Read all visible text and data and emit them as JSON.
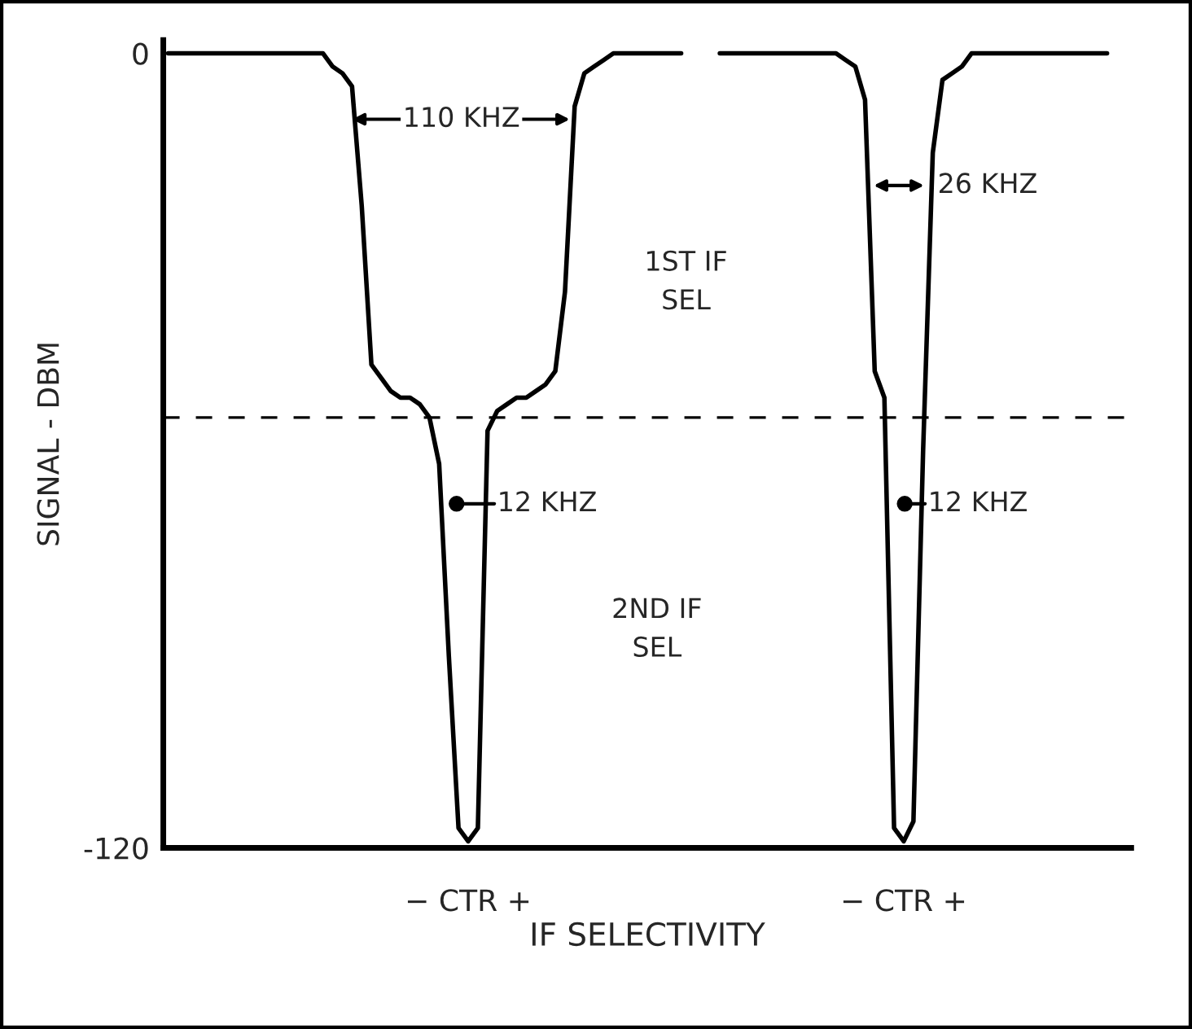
{
  "chart_data": {
    "type": "line",
    "xlabel": "IF SELECTIVITY",
    "ylabel": "SIGNAL - DBM",
    "categories": [
      null,
      null,
      null,
      null,
      null,
      null,
      null,
      null,
      null,
      null,
      null,
      null,
      null,
      null,
      null,
      null,
      null,
      null,
      null,
      null,
      null,
      null,
      null,
      null,
      null,
      null,
      null,
      null,
      null,
      null,
      null,
      "− CTR +",
      null,
      null,
      null,
      null,
      null,
      null,
      null,
      null,
      null,
      null,
      null,
      null,
      null,
      null,
      null,
      null,
      null,
      null,
      null,
      null,
      null,
      null,
      null,
      null,
      null,
      null,
      null,
      null,
      null,
      null,
      null,
      null,
      null,
      null,
      null,
      null,
      null,
      null,
      null,
      null,
      null,
      null,
      null,
      null,
      "− CTR +",
      null,
      null,
      null,
      null,
      null,
      null,
      null,
      null,
      null,
      null,
      null,
      null,
      null,
      null,
      null,
      null,
      null,
      null,
      null,
      null,
      null,
      null,
      null
    ],
    "ylim": [
      -120,
      2
    ],
    "yticks": [
      0,
      -120
    ],
    "series": [
      {
        "color": "#000000",
        "values": [
          0,
          0,
          0,
          0,
          0,
          0,
          0,
          0,
          0,
          0,
          0,
          0,
          0,
          0,
          0,
          0,
          0,
          -2,
          -3,
          -5,
          -23,
          -47,
          -49,
          -51,
          -52,
          -52,
          -53,
          -55,
          -62,
          -91,
          -117,
          -119,
          -117,
          -57,
          -54,
          -53,
          -52,
          -52,
          -51,
          -50,
          -48,
          -36,
          -8,
          -3,
          -2,
          -1,
          0,
          0,
          0,
          0,
          0,
          0,
          0,
          0,
          null,
          null,
          null,
          null,
          null,
          null,
          null,
          null,
          null,
          null,
          null,
          null,
          null,
          null,
          null,
          null,
          null,
          null,
          null,
          null,
          null,
          null,
          null,
          null,
          null,
          null,
          null,
          null,
          null,
          null,
          null,
          null,
          null,
          null,
          null,
          null,
          null,
          null,
          null,
          null,
          null,
          null,
          null,
          null,
          null,
          null
        ]
      },
      {
        "color": "#000000",
        "values": [
          null,
          null,
          null,
          null,
          null,
          null,
          null,
          null,
          null,
          null,
          null,
          null,
          null,
          null,
          null,
          null,
          null,
          null,
          null,
          null,
          null,
          null,
          null,
          null,
          null,
          null,
          null,
          null,
          null,
          null,
          null,
          null,
          null,
          null,
          null,
          null,
          null,
          null,
          null,
          null,
          null,
          null,
          null,
          null,
          null,
          null,
          null,
          null,
          null,
          null,
          null,
          null,
          null,
          null,
          null,
          null,
          null,
          0,
          0,
          0,
          0,
          0,
          0,
          0,
          0,
          0,
          0,
          0,
          0,
          0,
          -1,
          -2,
          -7,
          -48,
          -52,
          -117,
          -119,
          -116,
          -60,
          -15,
          -4,
          -3,
          -2,
          0,
          0,
          0,
          0,
          0,
          0,
          0,
          0,
          0,
          0,
          0,
          0,
          0,
          0,
          0,
          null,
          null
        ]
      }
    ],
    "ref_lines": [
      {
        "axis": "y",
        "value": -55,
        "color": "#000000",
        "line_style": "dashed"
      }
    ],
    "annotations": [
      "110 KHZ",
      "26 KHZ",
      "12 KHZ",
      "12 KHZ",
      "1ST IF\nSEL",
      "2ND IF\nSEL"
    ],
    "marker": "none",
    "line_style": "solid",
    "grid": false,
    "legend": false
  }
}
